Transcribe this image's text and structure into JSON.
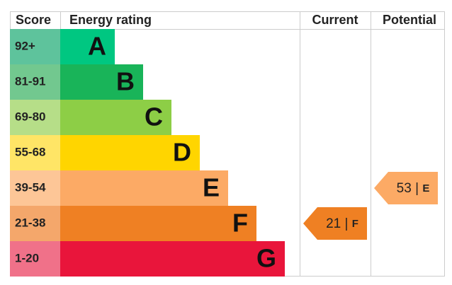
{
  "header": {
    "score": "Score",
    "rating": "Energy rating",
    "current": "Current",
    "potential": "Potential"
  },
  "bands": [
    {
      "range": "92+",
      "letter": "A",
      "color": "#00c781",
      "light": "#5ec39c"
    },
    {
      "range": "81-91",
      "letter": "B",
      "color": "#19b459",
      "light": "#72c88f"
    },
    {
      "range": "69-80",
      "letter": "C",
      "color": "#8dce46",
      "light": "#b6de88"
    },
    {
      "range": "55-68",
      "letter": "D",
      "color": "#ffd500",
      "light": "#ffe566"
    },
    {
      "range": "39-54",
      "letter": "E",
      "color": "#fcaa65",
      "light": "#fdc697"
    },
    {
      "range": "21-38",
      "letter": "F",
      "color": "#ef8023",
      "light": "#f4a76b"
    },
    {
      "range": "1-20",
      "letter": "G",
      "color": "#e9153b",
      "light": "#f07189"
    }
  ],
  "current": {
    "value": 21,
    "separator": "|",
    "letter": "F"
  },
  "potential": {
    "value": 53,
    "separator": "|",
    "letter": "E"
  }
}
